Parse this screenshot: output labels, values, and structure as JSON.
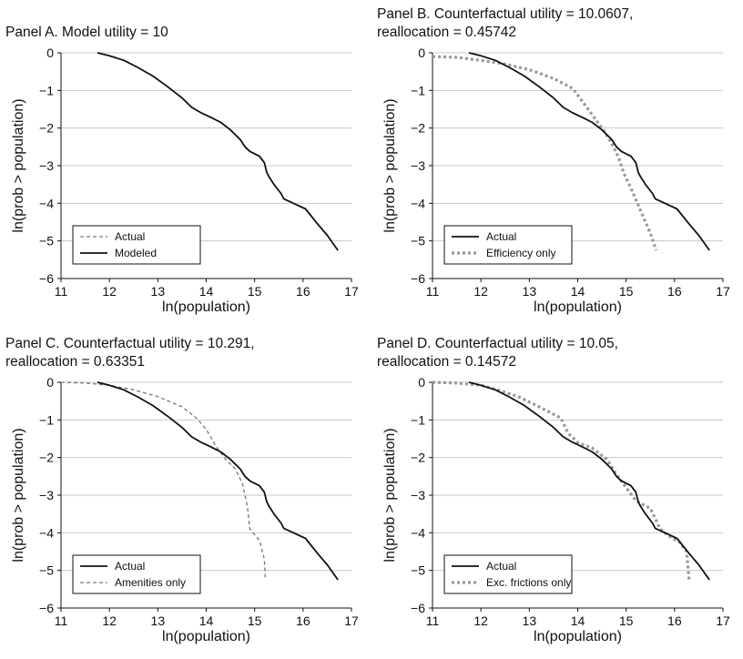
{
  "chart_data": [
    {
      "type": "line",
      "title": "Panel A. Model utility = 10",
      "title_lines": [
        "Panel A. Model utility = 10",
        ""
      ],
      "xlabel": "ln(population)",
      "ylabel": "ln(prob > population)",
      "xlim": [
        11,
        17
      ],
      "ylim": [
        -6,
        0
      ],
      "xticks": [
        11,
        12,
        13,
        14,
        15,
        16,
        17
      ],
      "yticks": [
        0,
        -1,
        -2,
        -3,
        -4,
        -5,
        -6
      ],
      "grid": "horizontal",
      "legend": "bottom-left",
      "series": [
        {
          "name": "Actual",
          "style": "dashed-thin",
          "x": [
            11.75,
            12.0,
            12.3,
            12.6,
            12.9,
            13.2,
            13.5,
            13.7,
            13.9,
            14.1,
            14.3,
            14.5,
            14.7,
            14.8,
            14.9,
            15.1,
            15.2,
            15.25,
            15.3,
            15.4,
            15.55,
            15.6,
            15.8,
            16.05,
            16.3,
            16.5,
            16.72
          ],
          "y": [
            0,
            -0.08,
            -0.2,
            -0.4,
            -0.62,
            -0.9,
            -1.2,
            -1.45,
            -1.6,
            -1.72,
            -1.85,
            -2.05,
            -2.3,
            -2.5,
            -2.62,
            -2.75,
            -2.92,
            -3.18,
            -3.3,
            -3.5,
            -3.75,
            -3.88,
            -4.0,
            -4.15,
            -4.55,
            -4.85,
            -5.25
          ]
        },
        {
          "name": "Modeled",
          "style": "solid",
          "x": [
            11.75,
            12.0,
            12.3,
            12.6,
            12.9,
            13.2,
            13.5,
            13.7,
            13.9,
            14.1,
            14.3,
            14.5,
            14.7,
            14.8,
            14.9,
            15.1,
            15.2,
            15.25,
            15.3,
            15.4,
            15.55,
            15.6,
            15.8,
            16.05,
            16.3,
            16.5,
            16.72
          ],
          "y": [
            0,
            -0.08,
            -0.2,
            -0.4,
            -0.62,
            -0.9,
            -1.2,
            -1.45,
            -1.6,
            -1.72,
            -1.85,
            -2.05,
            -2.3,
            -2.5,
            -2.62,
            -2.75,
            -2.92,
            -3.18,
            -3.3,
            -3.5,
            -3.75,
            -3.88,
            -4.0,
            -4.15,
            -4.55,
            -4.85,
            -5.25
          ]
        }
      ]
    },
    {
      "type": "line",
      "title": "Panel B. Counterfactual utility = 10.0607, reallocation = 0.45742",
      "title_lines": [
        "Panel B. Counterfactual utility = 10.0607,",
        "reallocation = 0.45742"
      ],
      "xlabel": "ln(population)",
      "ylabel": "ln(prob > population)",
      "xlim": [
        11,
        17
      ],
      "ylim": [
        -6,
        0
      ],
      "xticks": [
        11,
        12,
        13,
        14,
        15,
        16,
        17
      ],
      "yticks": [
        0,
        -1,
        -2,
        -3,
        -4,
        -5,
        -6
      ],
      "grid": "horizontal",
      "legend": "bottom-left",
      "series": [
        {
          "name": "Actual",
          "style": "solid",
          "x": [
            11.75,
            12.0,
            12.3,
            12.6,
            12.9,
            13.2,
            13.5,
            13.7,
            13.9,
            14.1,
            14.3,
            14.5,
            14.7,
            14.8,
            14.9,
            15.1,
            15.2,
            15.25,
            15.3,
            15.4,
            15.55,
            15.6,
            15.8,
            16.05,
            16.3,
            16.5,
            16.72
          ],
          "y": [
            0,
            -0.08,
            -0.2,
            -0.4,
            -0.62,
            -0.9,
            -1.2,
            -1.45,
            -1.6,
            -1.72,
            -1.85,
            -2.05,
            -2.3,
            -2.5,
            -2.62,
            -2.75,
            -2.92,
            -3.18,
            -3.3,
            -3.5,
            -3.75,
            -3.88,
            -4.0,
            -4.15,
            -4.55,
            -4.85,
            -5.25
          ]
        },
        {
          "name": "Efficiency only",
          "style": "dotted-thick",
          "x": [
            11.0,
            11.5,
            12.0,
            12.5,
            13.0,
            13.5,
            13.9,
            14.1,
            14.3,
            14.5,
            14.7,
            14.85,
            14.95,
            15.1,
            15.3,
            15.5,
            15.62
          ],
          "y": [
            -0.1,
            -0.12,
            -0.2,
            -0.3,
            -0.45,
            -0.68,
            -0.95,
            -1.3,
            -1.65,
            -2.0,
            -2.4,
            -2.8,
            -3.2,
            -3.6,
            -4.2,
            -4.8,
            -5.25
          ]
        }
      ]
    },
    {
      "type": "line",
      "title": "Panel C. Counterfactual utility = 10.291, reallocation = 0.63351",
      "title_lines": [
        "Panel C. Counterfactual utility = 10.291,",
        "reallocation = 0.63351"
      ],
      "xlabel": "ln(population)",
      "ylabel": "ln(prob > population)",
      "xlim": [
        11,
        17
      ],
      "ylim": [
        -6,
        0
      ],
      "xticks": [
        11,
        12,
        13,
        14,
        15,
        16,
        17
      ],
      "yticks": [
        0,
        -1,
        -2,
        -3,
        -4,
        -5,
        -6
      ],
      "grid": "horizontal",
      "legend": "bottom-left",
      "series": [
        {
          "name": "Actual",
          "style": "solid",
          "x": [
            11.75,
            12.0,
            12.3,
            12.6,
            12.9,
            13.2,
            13.5,
            13.7,
            13.9,
            14.1,
            14.3,
            14.5,
            14.7,
            14.8,
            14.9,
            15.1,
            15.2,
            15.25,
            15.3,
            15.4,
            15.55,
            15.6,
            15.8,
            16.05,
            16.3,
            16.5,
            16.72
          ],
          "y": [
            0,
            -0.08,
            -0.2,
            -0.4,
            -0.62,
            -0.9,
            -1.2,
            -1.45,
            -1.6,
            -1.72,
            -1.85,
            -2.05,
            -2.3,
            -2.5,
            -2.62,
            -2.75,
            -2.92,
            -3.18,
            -3.3,
            -3.5,
            -3.75,
            -3.88,
            -4.0,
            -4.15,
            -4.55,
            -4.85,
            -5.25
          ]
        },
        {
          "name": "Amenities only",
          "style": "dashed-thin",
          "x": [
            11.0,
            11.5,
            12.0,
            12.5,
            13.0,
            13.5,
            13.8,
            14.0,
            14.2,
            14.4,
            14.6,
            14.75,
            14.85,
            14.9,
            15.0,
            15.1,
            15.2,
            15.22
          ],
          "y": [
            0,
            -0.02,
            -0.08,
            -0.2,
            -0.38,
            -0.65,
            -0.95,
            -1.25,
            -1.7,
            -2.05,
            -2.3,
            -2.7,
            -3.3,
            -3.9,
            -4.05,
            -4.2,
            -4.7,
            -5.25
          ]
        }
      ]
    },
    {
      "type": "line",
      "title": "Panel D. Counterfactual utility = 10.05, reallocation = 0.14572",
      "title_lines": [
        "Panel D. Counterfactual utility = 10.05,",
        "reallocation = 0.14572"
      ],
      "xlabel": "ln(population)",
      "ylabel": "ln(prob > population)",
      "xlim": [
        11,
        17
      ],
      "ylim": [
        -6,
        0
      ],
      "xticks": [
        11,
        12,
        13,
        14,
        15,
        16,
        17
      ],
      "yticks": [
        0,
        -1,
        -2,
        -3,
        -4,
        -5,
        -6
      ],
      "grid": "horizontal",
      "legend": "bottom-left",
      "series": [
        {
          "name": "Actual",
          "style": "solid",
          "x": [
            11.75,
            12.0,
            12.3,
            12.6,
            12.9,
            13.2,
            13.5,
            13.7,
            13.9,
            14.1,
            14.3,
            14.5,
            14.7,
            14.8,
            14.9,
            15.1,
            15.2,
            15.25,
            15.3,
            15.4,
            15.55,
            15.6,
            15.8,
            16.05,
            16.3,
            16.5,
            16.72
          ],
          "y": [
            0,
            -0.08,
            -0.2,
            -0.4,
            -0.62,
            -0.9,
            -1.2,
            -1.45,
            -1.6,
            -1.72,
            -1.85,
            -2.05,
            -2.3,
            -2.5,
            -2.62,
            -2.75,
            -2.92,
            -3.18,
            -3.3,
            -3.5,
            -3.75,
            -3.88,
            -4.0,
            -4.15,
            -4.55,
            -4.85,
            -5.25
          ]
        },
        {
          "name": "Exc. frictions only",
          "style": "dotted-thick",
          "x": [
            11.0,
            11.5,
            12.0,
            12.4,
            12.8,
            13.2,
            13.5,
            13.65,
            13.8,
            14.0,
            14.3,
            14.6,
            14.8,
            15.0,
            15.2,
            15.5,
            15.7,
            15.9,
            16.1,
            16.25,
            16.3
          ],
          "y": [
            0,
            -0.02,
            -0.08,
            -0.22,
            -0.4,
            -0.65,
            -0.85,
            -0.95,
            -1.35,
            -1.6,
            -1.75,
            -2.05,
            -2.45,
            -2.8,
            -3.15,
            -3.35,
            -3.9,
            -4.1,
            -4.25,
            -4.5,
            -5.25
          ]
        }
      ]
    }
  ]
}
